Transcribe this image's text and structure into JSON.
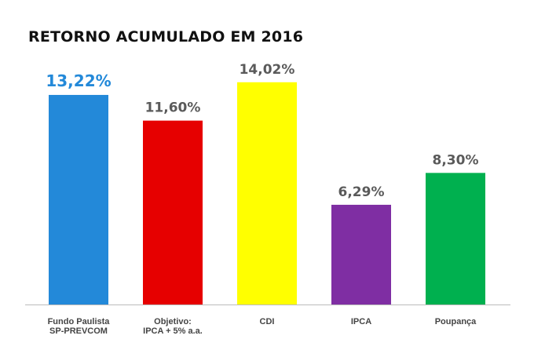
{
  "chart_data": {
    "type": "bar",
    "title": "RETORNO ACUMULADO EM 2016",
    "xlabel": "",
    "ylabel": "",
    "ylim": [
      0,
      15
    ],
    "grid": false,
    "categories": [
      {
        "lines": [
          "Fundo Paulista",
          "SP-PREVCOM"
        ]
      },
      {
        "lines": [
          "Objetivo:",
          "IPCA + 5% a.a."
        ]
      },
      {
        "lines": [
          "CDI"
        ]
      },
      {
        "lines": [
          "IPCA"
        ]
      },
      {
        "lines": [
          "Poupança"
        ]
      }
    ],
    "values": [
      13.22,
      11.6,
      14.02,
      6.29,
      8.3
    ],
    "value_labels": [
      "13,22%",
      "11,60%",
      "14,02%",
      "6,29%",
      "8,30%"
    ],
    "bar_colors": [
      "#2389d9",
      "#e60000",
      "#ffff00",
      "#7f2ea3",
      "#00b04f"
    ],
    "label_colors": [
      "#2389d9",
      "#5a5a5a",
      "#5a5a5a",
      "#5a5a5a",
      "#5a5a5a"
    ],
    "axis_color": "#bbbbbb"
  }
}
